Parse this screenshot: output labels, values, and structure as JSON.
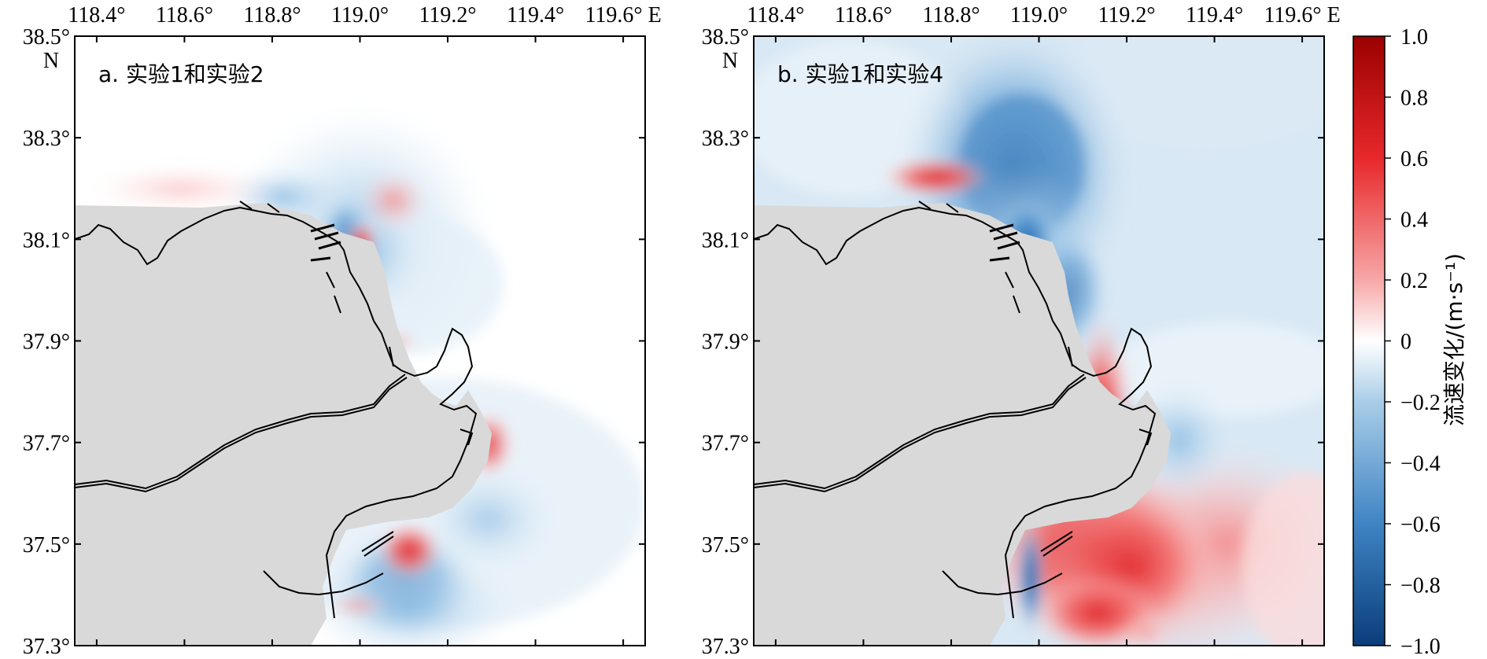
{
  "panels": [
    {
      "label": "a. 实验1和实验2"
    },
    {
      "label": "b. 实验1和实验4"
    }
  ],
  "axes": {
    "lon_ticks": [
      "118.4°",
      "118.6°",
      "118.8°",
      "119.0°",
      "119.2°",
      "119.4°",
      "119.6° E"
    ],
    "lat_ticks": [
      "38.5°",
      "38.3°",
      "38.1°",
      "37.9°",
      "37.7°",
      "37.5°",
      "37.3°"
    ],
    "north_label": "N",
    "lon_range": [
      118.35,
      119.65
    ],
    "lat_range": [
      37.3,
      38.5
    ]
  },
  "colorbar": {
    "label": "流速变化/(m·s⁻¹)",
    "ticks": [
      "1.0",
      "0.8",
      "0.6",
      "0.4",
      "0.2",
      "0",
      "−0.2",
      "−0.4",
      "−0.6",
      "−0.8",
      "−1.0"
    ],
    "range": [
      -1.0,
      1.0
    ],
    "colors": {
      "max": "#9b0000",
      "mid": "#ffffff",
      "min": "#0a3d7a"
    }
  },
  "colors": {
    "land": "#d9d9d9",
    "coast": "#000000",
    "frame": "#000000"
  }
}
